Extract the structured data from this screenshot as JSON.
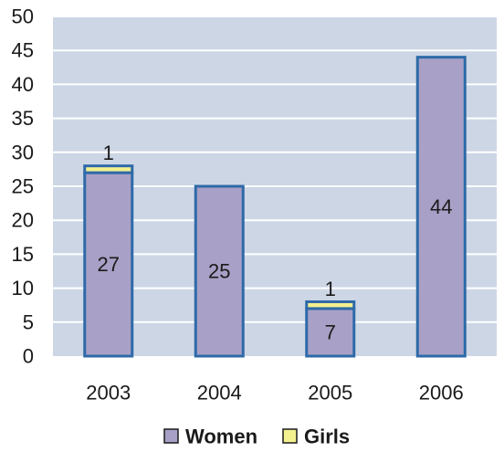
{
  "chart_data": {
    "type": "bar",
    "stacked": true,
    "categories": [
      "2003",
      "2004",
      "2005",
      "2006"
    ],
    "series": [
      {
        "name": "Women",
        "values": [
          27,
          25,
          7,
          44
        ],
        "color": "#a8a0c6"
      },
      {
        "name": "Girls",
        "values": [
          1,
          0,
          1,
          0
        ],
        "color": "#f3f08f"
      }
    ],
    "ylim": [
      0,
      50
    ],
    "yticks": [
      "0",
      "5",
      "10",
      "15",
      "20",
      "25",
      "30",
      "35",
      "40",
      "45",
      "50"
    ],
    "grid": true,
    "legend_position": "bottom",
    "colors": {
      "plot_background": "#cdd6e5",
      "gridline": "#ffffff",
      "bar_border": "#2e6aa8"
    }
  }
}
